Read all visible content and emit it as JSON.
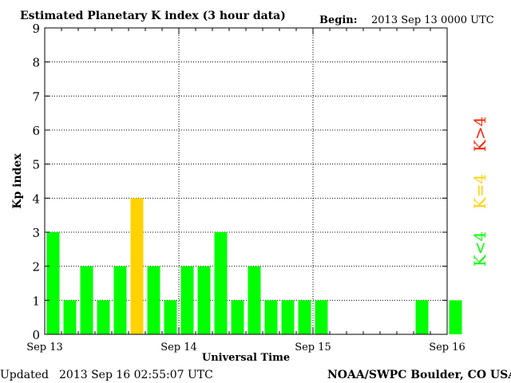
{
  "title": "Estimated Planetary K index (3 hour data)",
  "begin_label": "Begin:",
  "begin_value": "2013 Sep 13 0000 UTC",
  "updated_label": "Updated",
  "updated_value": "2013 Sep 16 02:55:07 UTC",
  "credit": "NOAA/SWPC Boulder, CO USA",
  "chart_data": {
    "type": "bar",
    "title": "Estimated Planetary K index (3 hour data)",
    "xlabel": "Universal Time",
    "ylabel": "Kp index",
    "ylim": [
      0,
      9
    ],
    "yticks": [
      0,
      1,
      2,
      3,
      4,
      5,
      6,
      7,
      8,
      9
    ],
    "x_tick_labels": [
      "Sep 13",
      "Sep 14",
      "Sep 15",
      "Sep 16"
    ],
    "grid": true,
    "period_hours": 3,
    "values": [
      3,
      1,
      2,
      1,
      2,
      4,
      2,
      1,
      2,
      2,
      3,
      1,
      2,
      1,
      1,
      1,
      1,
      null,
      null,
      null,
      null,
      null,
      1,
      null,
      1
    ],
    "legend": [
      {
        "label": "K<4",
        "color": "#00ff00"
      },
      {
        "label": "K=4",
        "color": "#ffd200"
      },
      {
        "label": "K>4",
        "color": "#ff2000"
      }
    ],
    "colors": {
      "below": "#00ff00",
      "equal": "#ffd200",
      "above": "#ff2000"
    }
  }
}
